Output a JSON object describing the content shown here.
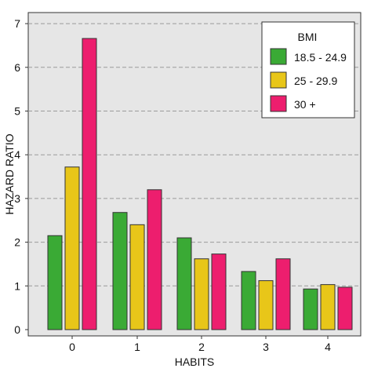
{
  "chart_data": {
    "type": "bar",
    "xlabel": "HABITS",
    "ylabel": "HAZARD RATIO",
    "categories": [
      "0",
      "1",
      "2",
      "3",
      "4"
    ],
    "ylim": [
      0,
      7
    ],
    "yticks": [
      0,
      1,
      2,
      3,
      4,
      5,
      6,
      7
    ],
    "grid": "horizontal dashed",
    "background": "#e6e6e6",
    "legend": {
      "title": "BMI",
      "placement": "top-right"
    },
    "series": [
      {
        "name": "18.5 - 24.9",
        "color": "#3aaa35",
        "values": [
          2.15,
          2.68,
          2.1,
          1.33,
          0.93
        ]
      },
      {
        "name": "25 - 29.9",
        "color": "#e8c619",
        "values": [
          3.72,
          2.4,
          1.62,
          1.12,
          1.03
        ]
      },
      {
        "name": "30 +",
        "color": "#ed1e6e",
        "values": [
          6.66,
          3.2,
          1.73,
          1.62,
          0.97
        ]
      }
    ]
  }
}
